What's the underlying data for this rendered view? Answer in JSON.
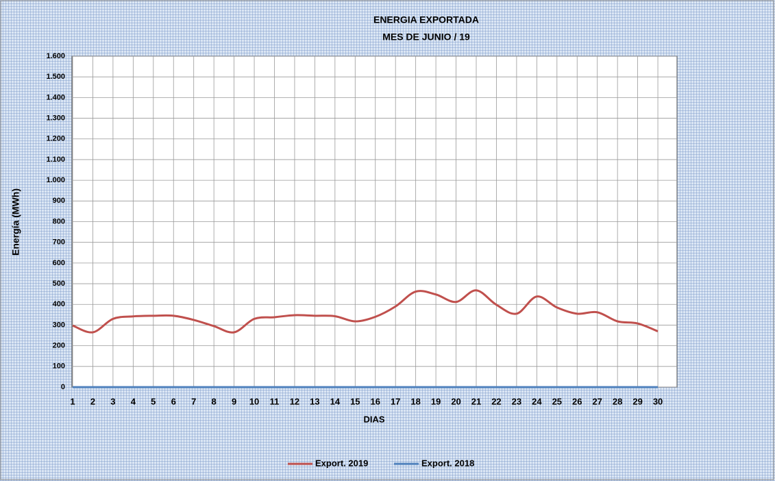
{
  "chart_data": {
    "type": "line",
    "title": "ENERGIA EXPORTADA",
    "subtitle": "MES DE JUNIO / 19",
    "y_label": "Energía (MWh)",
    "x_label": "DIAS",
    "categories": [
      "1",
      "2",
      "3",
      "4",
      "5",
      "6",
      "7",
      "8",
      "9",
      "10",
      "11",
      "12",
      "13",
      "14",
      "15",
      "16",
      "17",
      "18",
      "19",
      "20",
      "21",
      "22",
      "23",
      "24",
      "25",
      "26",
      "27",
      "28",
      "29",
      "30"
    ],
    "series": [
      {
        "name": "Export. 2019",
        "color": "#c0504d",
        "values": [
          298,
          265,
          330,
          342,
          345,
          345,
          325,
          295,
          265,
          330,
          338,
          348,
          345,
          343,
          318,
          340,
          390,
          462,
          448,
          412,
          468,
          398,
          355,
          438,
          385,
          355,
          362,
          318,
          308,
          270
        ]
      },
      {
        "name": "Export. 2018",
        "color": "#4f81bd",
        "values": [
          0,
          0,
          0,
          0,
          0,
          0,
          0,
          0,
          0,
          0,
          0,
          0,
          0,
          0,
          0,
          0,
          0,
          0,
          0,
          0,
          0,
          0,
          0,
          0,
          0,
          0,
          0,
          0,
          0,
          0
        ]
      }
    ],
    "ylim": [
      0,
      1600
    ],
    "yticks": [
      0,
      100,
      200,
      300,
      400,
      500,
      600,
      700,
      800,
      900,
      {
        "value": 1000,
        "label": "1.000"
      },
      {
        "value": 1100,
        "label": "1.100"
      },
      {
        "value": 1200,
        "label": "1.200"
      },
      {
        "value": 1300,
        "label": "1.300"
      },
      {
        "value": 1400,
        "label": "1.400"
      },
      {
        "value": 1500,
        "label": "1.500"
      },
      {
        "value": 1600,
        "label": "1.600"
      }
    ],
    "grid": true,
    "legend": "bottom"
  }
}
